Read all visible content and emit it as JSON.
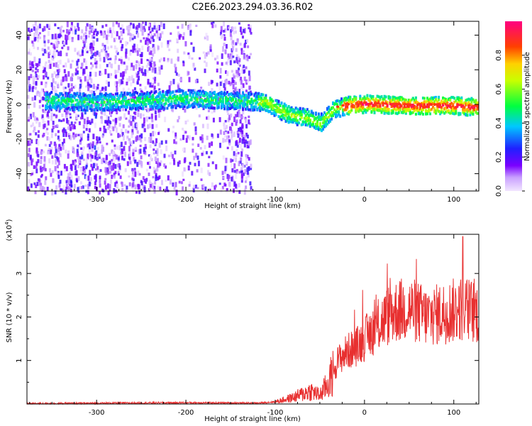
{
  "title": "C2E6.2023.294.03.36.R02",
  "colors": {
    "spectrogram_low": "#e0c8ff",
    "spectrogram_mid": "#5000ff",
    "snr_line": "#e83030",
    "axes": "#000000"
  },
  "chart_data": [
    {
      "type": "heatmap",
      "xlabel": "Height of straight line (km)",
      "ylabel": "Frequency (Hz)",
      "xlim": [
        -378,
        128
      ],
      "ylim": [
        -50,
        48
      ],
      "xticks": [
        -300,
        -200,
        -100,
        0,
        100
      ],
      "yticks": [
        -40,
        -20,
        0,
        20,
        40
      ],
      "colorbar": {
        "label": "Normalized spectral amplitude",
        "ticks": [
          "0.0",
          "0.2",
          "0.4",
          "0.6",
          "0.8"
        ],
        "range": [
          0,
          1
        ],
        "colormap": "rainbow (lavender → purple → blue → cyan → green → yellow → red → magenta)"
      },
      "ridge": [
        {
          "x": -355,
          "y": 3
        },
        {
          "x": -300,
          "y": 2
        },
        {
          "x": -250,
          "y": 3
        },
        {
          "x": -200,
          "y": 4
        },
        {
          "x": -150,
          "y": 3
        },
        {
          "x": -110,
          "y": 2
        },
        {
          "x": -95,
          "y": -3
        },
        {
          "x": -80,
          "y": -6
        },
        {
          "x": -65,
          "y": -7
        },
        {
          "x": -50,
          "y": -10
        },
        {
          "x": -35,
          "y": -2
        },
        {
          "x": -20,
          "y": 0
        },
        {
          "x": 0,
          "y": 1
        },
        {
          "x": 50,
          "y": 0
        },
        {
          "x": 100,
          "y": 0
        },
        {
          "x": 128,
          "y": -1
        }
      ]
    },
    {
      "type": "line",
      "xlabel": "Height of straight line (km)",
      "ylabel": "SNR (10 * v/v)",
      "multiplier": "(x10",
      "multiplier_exp": "4",
      "multiplier_close": ")",
      "xlim": [
        -378,
        128
      ],
      "ylim": [
        0,
        3.9
      ],
      "xticks": [
        -300,
        -200,
        -100,
        0,
        100
      ],
      "yticks": [
        1,
        2,
        3
      ],
      "envelope": [
        {
          "x": -378,
          "y": 0.01
        },
        {
          "x": -200,
          "y": 0.03
        },
        {
          "x": -120,
          "y": 0.02
        },
        {
          "x": -100,
          "y": 0.05
        },
        {
          "x": -80,
          "y": 0.15
        },
        {
          "x": -60,
          "y": 0.3
        },
        {
          "x": -50,
          "y": 0.2
        },
        {
          "x": -40,
          "y": 0.5
        },
        {
          "x": -30,
          "y": 1.0
        },
        {
          "x": -20,
          "y": 1.2
        },
        {
          "x": -10,
          "y": 1.3
        },
        {
          "x": 0,
          "y": 1.5
        },
        {
          "x": 10,
          "y": 1.7
        },
        {
          "x": 20,
          "y": 1.9
        },
        {
          "x": 30,
          "y": 2.1
        },
        {
          "x": 50,
          "y": 2.2
        },
        {
          "x": 70,
          "y": 2.0
        },
        {
          "x": 90,
          "y": 2.1
        },
        {
          "x": 110,
          "y": 2.2
        },
        {
          "x": 128,
          "y": 2.1
        }
      ],
      "peak": {
        "x": 110,
        "y": 3.85
      }
    }
  ]
}
